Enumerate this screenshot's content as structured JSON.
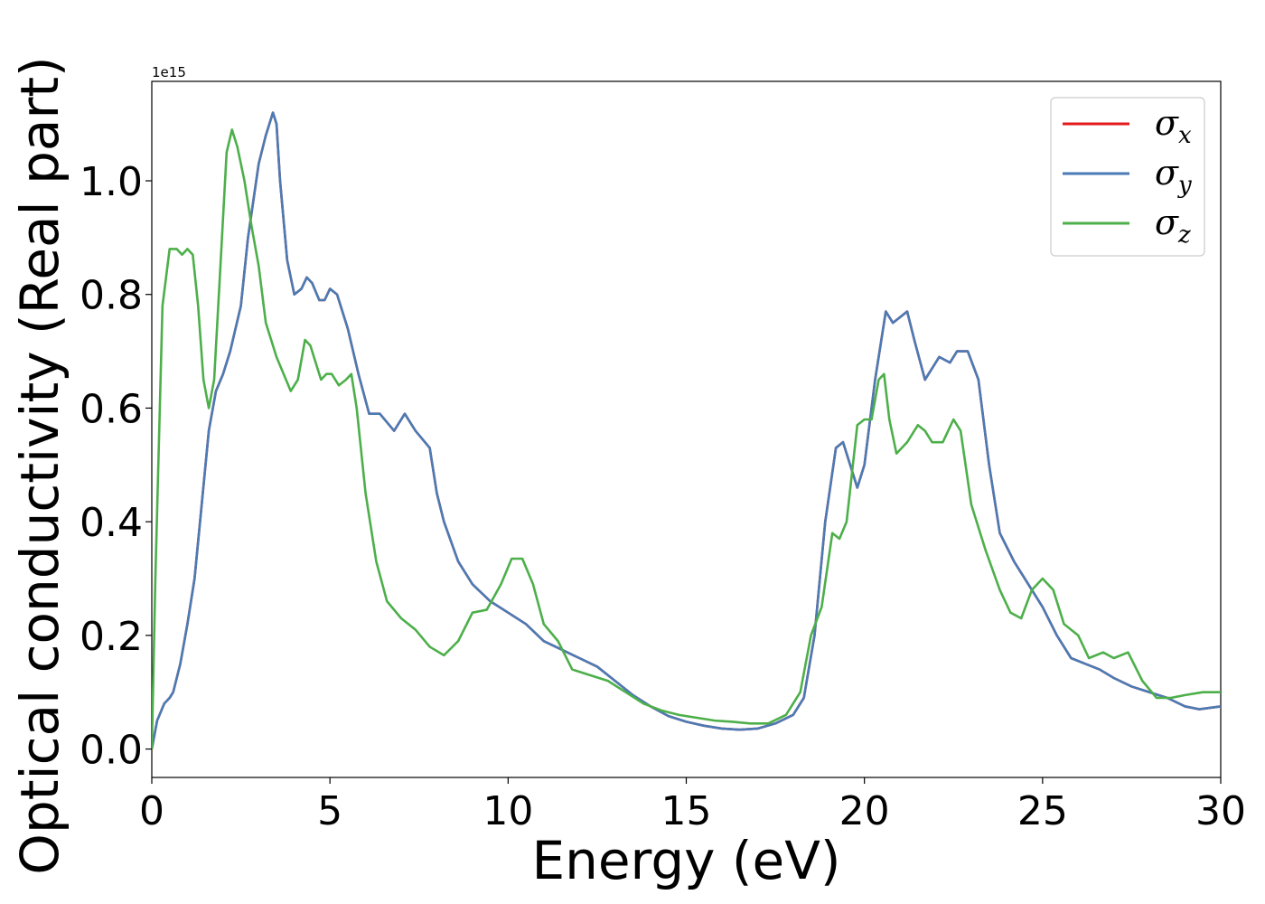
{
  "chart_data": {
    "type": "line",
    "xlabel": "Energy (eV)",
    "ylabel": "Optical conductivity (Real part)",
    "offset_text": "1e15",
    "xlim": [
      0,
      30
    ],
    "ylim": [
      -0.05,
      1.175
    ],
    "xticks": [
      0,
      5,
      10,
      15,
      20,
      25,
      30
    ],
    "xtick_labels": [
      "0",
      "5",
      "10",
      "15",
      "20",
      "25",
      "30"
    ],
    "yticks": [
      0.0,
      0.2,
      0.4,
      0.6,
      0.8,
      1.0
    ],
    "ytick_labels": [
      "0.0",
      "0.2",
      "0.4",
      "0.6",
      "0.8",
      "1.0"
    ],
    "grid": false,
    "legend_position": "top-right",
    "series": [
      {
        "name": "σx",
        "symbol": "σ",
        "subscript": "x",
        "color": "#e41a1c",
        "points": [
          [
            0,
            0.0
          ],
          [
            0.15,
            0.05
          ],
          [
            0.35,
            0.08
          ],
          [
            0.5,
            0.09
          ],
          [
            0.6,
            0.1
          ],
          [
            0.8,
            0.15
          ],
          [
            1.0,
            0.22
          ],
          [
            1.2,
            0.3
          ],
          [
            1.4,
            0.43
          ],
          [
            1.6,
            0.56
          ],
          [
            1.8,
            0.63
          ],
          [
            2.0,
            0.66
          ],
          [
            2.2,
            0.7
          ],
          [
            2.5,
            0.78
          ],
          [
            2.7,
            0.9
          ],
          [
            3.0,
            1.03
          ],
          [
            3.2,
            1.08
          ],
          [
            3.4,
            1.12
          ],
          [
            3.5,
            1.1
          ],
          [
            3.6,
            1.0
          ],
          [
            3.8,
            0.86
          ],
          [
            4.0,
            0.8
          ],
          [
            4.2,
            0.81
          ],
          [
            4.35,
            0.83
          ],
          [
            4.5,
            0.82
          ],
          [
            4.7,
            0.79
          ],
          [
            4.85,
            0.79
          ],
          [
            5.0,
            0.81
          ],
          [
            5.2,
            0.8
          ],
          [
            5.5,
            0.74
          ],
          [
            5.8,
            0.66
          ],
          [
            6.1,
            0.59
          ],
          [
            6.4,
            0.59
          ],
          [
            6.8,
            0.56
          ],
          [
            7.1,
            0.59
          ],
          [
            7.4,
            0.56
          ],
          [
            7.8,
            0.53
          ],
          [
            8.0,
            0.45
          ],
          [
            8.2,
            0.4
          ],
          [
            8.6,
            0.33
          ],
          [
            9.0,
            0.29
          ],
          [
            9.5,
            0.26
          ],
          [
            10.0,
            0.24
          ],
          [
            10.5,
            0.22
          ],
          [
            11.0,
            0.19
          ],
          [
            11.5,
            0.175
          ],
          [
            12.0,
            0.16
          ],
          [
            12.5,
            0.145
          ],
          [
            13.0,
            0.12
          ],
          [
            13.5,
            0.095
          ],
          [
            14.0,
            0.075
          ],
          [
            14.5,
            0.058
          ],
          [
            15.0,
            0.048
          ],
          [
            15.5,
            0.041
          ],
          [
            16.0,
            0.036
          ],
          [
            16.5,
            0.034
          ],
          [
            17.0,
            0.036
          ],
          [
            17.5,
            0.045
          ],
          [
            18.0,
            0.06
          ],
          [
            18.3,
            0.09
          ],
          [
            18.6,
            0.2
          ],
          [
            18.9,
            0.4
          ],
          [
            19.2,
            0.53
          ],
          [
            19.4,
            0.54
          ],
          [
            19.6,
            0.5
          ],
          [
            19.8,
            0.46
          ],
          [
            20.0,
            0.5
          ],
          [
            20.3,
            0.65
          ],
          [
            20.6,
            0.77
          ],
          [
            20.8,
            0.75
          ],
          [
            21.0,
            0.76
          ],
          [
            21.2,
            0.77
          ],
          [
            21.4,
            0.72
          ],
          [
            21.7,
            0.65
          ],
          [
            21.9,
            0.67
          ],
          [
            22.1,
            0.69
          ],
          [
            22.4,
            0.68
          ],
          [
            22.6,
            0.7
          ],
          [
            22.9,
            0.7
          ],
          [
            23.2,
            0.65
          ],
          [
            23.5,
            0.5
          ],
          [
            23.8,
            0.38
          ],
          [
            24.2,
            0.33
          ],
          [
            24.6,
            0.29
          ],
          [
            25.0,
            0.25
          ],
          [
            25.4,
            0.2
          ],
          [
            25.8,
            0.16
          ],
          [
            26.2,
            0.15
          ],
          [
            26.6,
            0.14
          ],
          [
            27.0,
            0.125
          ],
          [
            27.5,
            0.11
          ],
          [
            28.0,
            0.1
          ],
          [
            28.5,
            0.09
          ],
          [
            29.0,
            0.075
          ],
          [
            29.4,
            0.07
          ],
          [
            30.0,
            0.075
          ]
        ]
      },
      {
        "name": "σy",
        "symbol": "σ",
        "subscript": "y",
        "color": "#4a7bb5",
        "points": [
          [
            0,
            0.0
          ],
          [
            0.15,
            0.05
          ],
          [
            0.35,
            0.08
          ],
          [
            0.5,
            0.09
          ],
          [
            0.6,
            0.1
          ],
          [
            0.8,
            0.15
          ],
          [
            1.0,
            0.22
          ],
          [
            1.2,
            0.3
          ],
          [
            1.4,
            0.43
          ],
          [
            1.6,
            0.56
          ],
          [
            1.8,
            0.63
          ],
          [
            2.0,
            0.66
          ],
          [
            2.2,
            0.7
          ],
          [
            2.5,
            0.78
          ],
          [
            2.7,
            0.9
          ],
          [
            3.0,
            1.03
          ],
          [
            3.2,
            1.08
          ],
          [
            3.4,
            1.12
          ],
          [
            3.5,
            1.1
          ],
          [
            3.6,
            1.0
          ],
          [
            3.8,
            0.86
          ],
          [
            4.0,
            0.8
          ],
          [
            4.2,
            0.81
          ],
          [
            4.35,
            0.83
          ],
          [
            4.5,
            0.82
          ],
          [
            4.7,
            0.79
          ],
          [
            4.85,
            0.79
          ],
          [
            5.0,
            0.81
          ],
          [
            5.2,
            0.8
          ],
          [
            5.5,
            0.74
          ],
          [
            5.8,
            0.66
          ],
          [
            6.1,
            0.59
          ],
          [
            6.4,
            0.59
          ],
          [
            6.8,
            0.56
          ],
          [
            7.1,
            0.59
          ],
          [
            7.4,
            0.56
          ],
          [
            7.8,
            0.53
          ],
          [
            8.0,
            0.45
          ],
          [
            8.2,
            0.4
          ],
          [
            8.6,
            0.33
          ],
          [
            9.0,
            0.29
          ],
          [
            9.5,
            0.26
          ],
          [
            10.0,
            0.24
          ],
          [
            10.5,
            0.22
          ],
          [
            11.0,
            0.19
          ],
          [
            11.5,
            0.175
          ],
          [
            12.0,
            0.16
          ],
          [
            12.5,
            0.145
          ],
          [
            13.0,
            0.12
          ],
          [
            13.5,
            0.095
          ],
          [
            14.0,
            0.075
          ],
          [
            14.5,
            0.058
          ],
          [
            15.0,
            0.048
          ],
          [
            15.5,
            0.041
          ],
          [
            16.0,
            0.036
          ],
          [
            16.5,
            0.034
          ],
          [
            17.0,
            0.036
          ],
          [
            17.5,
            0.045
          ],
          [
            18.0,
            0.06
          ],
          [
            18.3,
            0.09
          ],
          [
            18.6,
            0.2
          ],
          [
            18.9,
            0.4
          ],
          [
            19.2,
            0.53
          ],
          [
            19.4,
            0.54
          ],
          [
            19.6,
            0.5
          ],
          [
            19.8,
            0.46
          ],
          [
            20.0,
            0.5
          ],
          [
            20.3,
            0.65
          ],
          [
            20.6,
            0.77
          ],
          [
            20.8,
            0.75
          ],
          [
            21.0,
            0.76
          ],
          [
            21.2,
            0.77
          ],
          [
            21.4,
            0.72
          ],
          [
            21.7,
            0.65
          ],
          [
            21.9,
            0.67
          ],
          [
            22.1,
            0.69
          ],
          [
            22.4,
            0.68
          ],
          [
            22.6,
            0.7
          ],
          [
            22.9,
            0.7
          ],
          [
            23.2,
            0.65
          ],
          [
            23.5,
            0.5
          ],
          [
            23.8,
            0.38
          ],
          [
            24.2,
            0.33
          ],
          [
            24.6,
            0.29
          ],
          [
            25.0,
            0.25
          ],
          [
            25.4,
            0.2
          ],
          [
            25.8,
            0.16
          ],
          [
            26.2,
            0.15
          ],
          [
            26.6,
            0.14
          ],
          [
            27.0,
            0.125
          ],
          [
            27.5,
            0.11
          ],
          [
            28.0,
            0.1
          ],
          [
            28.5,
            0.09
          ],
          [
            29.0,
            0.075
          ],
          [
            29.4,
            0.07
          ],
          [
            30.0,
            0.075
          ]
        ]
      },
      {
        "name": "σz",
        "symbol": "σ",
        "subscript": "z",
        "color": "#4daf4a",
        "points": [
          [
            0,
            0.0
          ],
          [
            0.1,
            0.3
          ],
          [
            0.3,
            0.78
          ],
          [
            0.5,
            0.88
          ],
          [
            0.7,
            0.88
          ],
          [
            0.85,
            0.87
          ],
          [
            1.0,
            0.88
          ],
          [
            1.15,
            0.87
          ],
          [
            1.3,
            0.78
          ],
          [
            1.45,
            0.65
          ],
          [
            1.6,
            0.6
          ],
          [
            1.75,
            0.65
          ],
          [
            1.9,
            0.82
          ],
          [
            2.1,
            1.05
          ],
          [
            2.25,
            1.09
          ],
          [
            2.4,
            1.06
          ],
          [
            2.6,
            1.0
          ],
          [
            2.8,
            0.92
          ],
          [
            3.0,
            0.85
          ],
          [
            3.2,
            0.75
          ],
          [
            3.5,
            0.69
          ],
          [
            3.7,
            0.66
          ],
          [
            3.9,
            0.63
          ],
          [
            4.1,
            0.65
          ],
          [
            4.3,
            0.72
          ],
          [
            4.45,
            0.71
          ],
          [
            4.6,
            0.68
          ],
          [
            4.75,
            0.65
          ],
          [
            4.9,
            0.66
          ],
          [
            5.05,
            0.66
          ],
          [
            5.25,
            0.64
          ],
          [
            5.45,
            0.65
          ],
          [
            5.6,
            0.66
          ],
          [
            5.75,
            0.6
          ],
          [
            6.0,
            0.45
          ],
          [
            6.3,
            0.33
          ],
          [
            6.6,
            0.26
          ],
          [
            7.0,
            0.23
          ],
          [
            7.4,
            0.21
          ],
          [
            7.8,
            0.18
          ],
          [
            8.2,
            0.165
          ],
          [
            8.6,
            0.19
          ],
          [
            9.0,
            0.24
          ],
          [
            9.4,
            0.245
          ],
          [
            9.8,
            0.29
          ],
          [
            10.1,
            0.335
          ],
          [
            10.4,
            0.335
          ],
          [
            10.7,
            0.29
          ],
          [
            11.0,
            0.22
          ],
          [
            11.4,
            0.19
          ],
          [
            11.8,
            0.14
          ],
          [
            12.3,
            0.13
          ],
          [
            12.8,
            0.12
          ],
          [
            13.3,
            0.1
          ],
          [
            13.8,
            0.08
          ],
          [
            14.3,
            0.068
          ],
          [
            14.8,
            0.06
          ],
          [
            15.3,
            0.055
          ],
          [
            15.8,
            0.05
          ],
          [
            16.3,
            0.048
          ],
          [
            16.8,
            0.045
          ],
          [
            17.3,
            0.045
          ],
          [
            17.8,
            0.06
          ],
          [
            18.2,
            0.1
          ],
          [
            18.5,
            0.2
          ],
          [
            18.8,
            0.25
          ],
          [
            19.1,
            0.38
          ],
          [
            19.3,
            0.37
          ],
          [
            19.5,
            0.4
          ],
          [
            19.8,
            0.57
          ],
          [
            20.0,
            0.58
          ],
          [
            20.2,
            0.58
          ],
          [
            20.4,
            0.65
          ],
          [
            20.55,
            0.66
          ],
          [
            20.7,
            0.58
          ],
          [
            20.9,
            0.52
          ],
          [
            21.2,
            0.54
          ],
          [
            21.5,
            0.57
          ],
          [
            21.7,
            0.56
          ],
          [
            21.9,
            0.54
          ],
          [
            22.2,
            0.54
          ],
          [
            22.5,
            0.58
          ],
          [
            22.7,
            0.56
          ],
          [
            23.0,
            0.43
          ],
          [
            23.4,
            0.35
          ],
          [
            23.8,
            0.28
          ],
          [
            24.1,
            0.24
          ],
          [
            24.4,
            0.23
          ],
          [
            24.7,
            0.28
          ],
          [
            25.0,
            0.3
          ],
          [
            25.3,
            0.28
          ],
          [
            25.6,
            0.22
          ],
          [
            26.0,
            0.2
          ],
          [
            26.3,
            0.16
          ],
          [
            26.7,
            0.17
          ],
          [
            27.0,
            0.16
          ],
          [
            27.4,
            0.17
          ],
          [
            27.8,
            0.12
          ],
          [
            28.2,
            0.09
          ],
          [
            28.6,
            0.09
          ],
          [
            29.0,
            0.095
          ],
          [
            29.5,
            0.1
          ],
          [
            30.0,
            0.1
          ]
        ]
      }
    ]
  }
}
